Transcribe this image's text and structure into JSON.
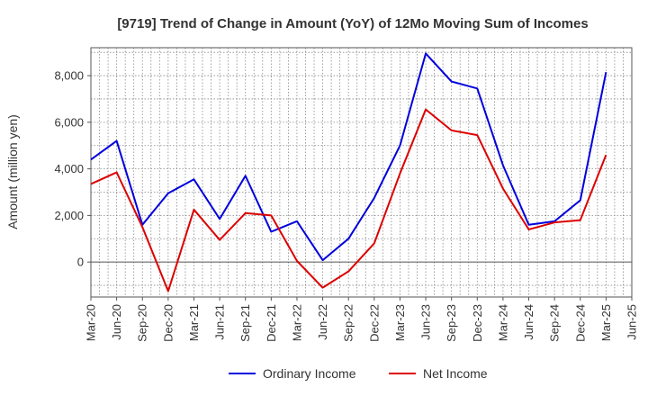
{
  "chart_data": {
    "type": "line",
    "title": "[9719]  Trend of Change in Amount (YoY) of 12Mo Moving Sum of Incomes",
    "xlabel": "",
    "ylabel": "Amount (million yen)",
    "categories": [
      "Mar-20",
      "Jun-20",
      "Sep-20",
      "Dec-20",
      "Mar-21",
      "Jun-21",
      "Sep-21",
      "Dec-21",
      "Mar-22",
      "Jun-22",
      "Sep-22",
      "Dec-22",
      "Mar-23",
      "Jun-23",
      "Sep-23",
      "Dec-23",
      "Mar-24",
      "Jun-24",
      "Sep-24",
      "Dec-24",
      "Mar-25",
      "Jun-25"
    ],
    "ylim": [
      -1500,
      9200
    ],
    "yticks": [
      0,
      2000,
      4000,
      6000,
      8000
    ],
    "ytick_labels": [
      "0",
      "2,000",
      "4,000",
      "6,000",
      "8,000"
    ],
    "grid": true,
    "legend_position": "bottom",
    "series": [
      {
        "name": "Ordinary Income",
        "color": "#0000dd",
        "values": [
          4400,
          5200,
          1600,
          2950,
          3550,
          1850,
          3700,
          1300,
          1750,
          80,
          1000,
          2750,
          5000,
          8950,
          7750,
          7450,
          4150,
          1600,
          1750,
          2650,
          8150,
          null
        ]
      },
      {
        "name": "Net Income",
        "color": "#dd0000",
        "values": [
          3350,
          3850,
          1500,
          -1250,
          2250,
          950,
          2100,
          2000,
          50,
          -1100,
          -400,
          800,
          3800,
          6550,
          5650,
          5450,
          3150,
          1400,
          1700,
          1800,
          4600,
          null
        ]
      }
    ]
  }
}
